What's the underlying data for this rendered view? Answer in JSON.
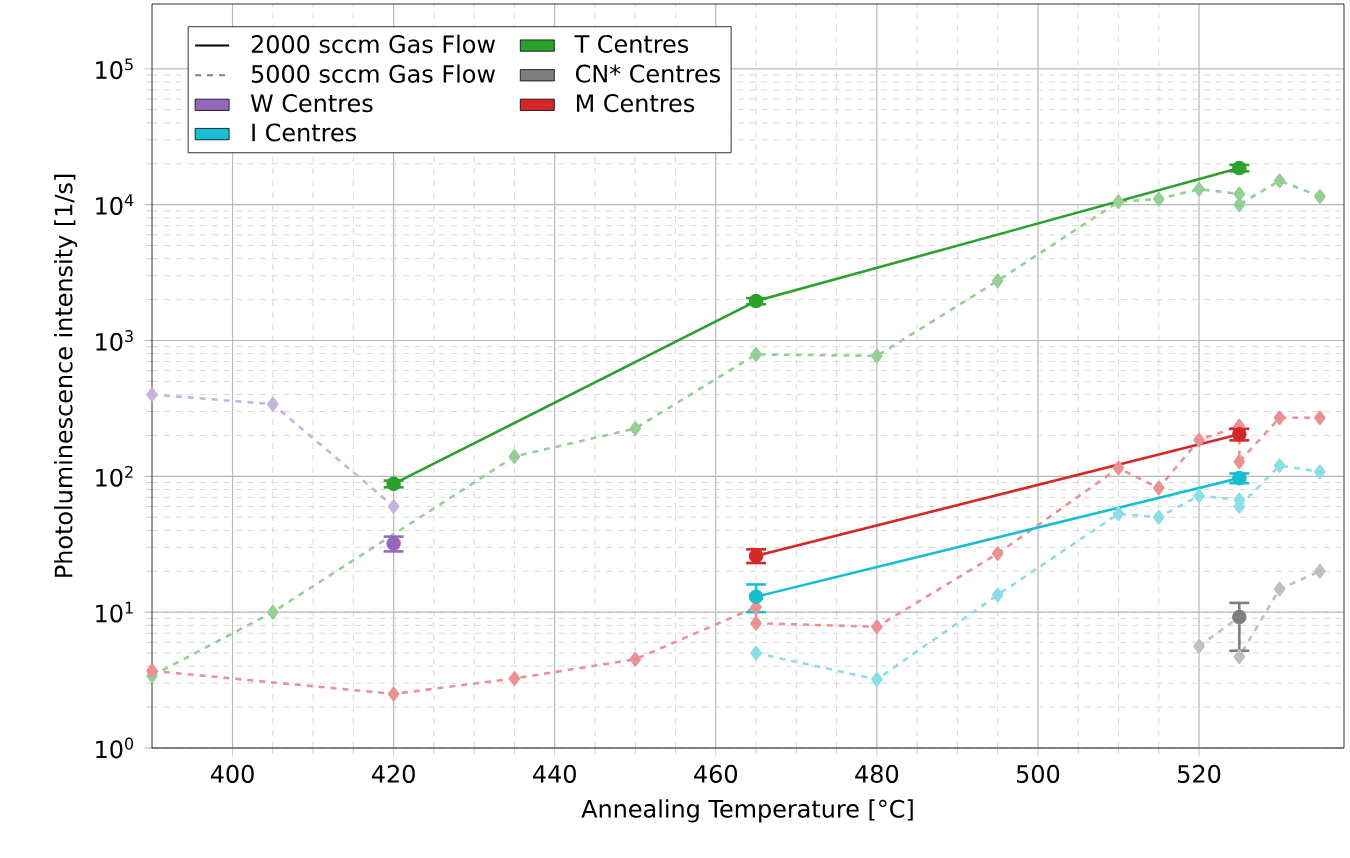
{
  "chart_data": {
    "type": "line",
    "xlabel": "Annealing Temperature [°C]",
    "ylabel": "Photoluminescence intensity [1/s]",
    "log": true,
    "grid": true,
    "legend": "top left",
    "xlim": [
      390,
      538
    ],
    "ylim": [
      1,
      300000
    ],
    "xticks": [
      400,
      420,
      440,
      460,
      480,
      500,
      520
    ],
    "yticks": [
      {
        "value": 1,
        "label": "10$^{0}$"
      },
      {
        "value": 10,
        "label": "10$^{1}$"
      },
      {
        "value": 100,
        "label": "10$^{2}$"
      },
      {
        "value": 1000,
        "label": "10$^{3}$"
      },
      {
        "value": 10000,
        "label": "10$^{4}$"
      },
      {
        "value": 100000,
        "label": "10$^{5}$"
      }
    ],
    "annotations": [
      "2000 sccm Gas Flow",
      "5000 sccm Gas Flow"
    ],
    "series": [
      {
        "color": "#c9b3de",
        "line_style": "dashed",
        "marker": "diamond",
        "x": [
          390,
          405,
          420
        ],
        "values": [
          400,
          340,
          60
        ]
      },
      {
        "color": "#8bdee7",
        "line_style": "dashed",
        "marker": "diamond",
        "x": [
          465,
          480,
          495,
          510,
          515,
          520,
          525,
          525,
          530,
          535
        ],
        "values": [
          5.0,
          3.2,
          13.4,
          53,
          50,
          72,
          67,
          60,
          120,
          108
        ]
      },
      {
        "color": "#95cf95",
        "line_style": "dashed",
        "marker": "diamond",
        "x": [
          390,
          405,
          435,
          450,
          465,
          480,
          495,
          510,
          515,
          520,
          525,
          525,
          530,
          535
        ],
        "values": [
          3.4,
          10,
          140,
          225,
          790,
          770,
          2750,
          10500,
          11000,
          13000,
          12000,
          10000,
          15000,
          11500
        ]
      },
      {
        "color": "#bfbfbf",
        "line_style": "dashed",
        "marker": "diamond",
        "x": [
          520,
          525,
          525,
          530,
          535
        ],
        "values": [
          5.6,
          9.2,
          4.7,
          14.8,
          20
        ]
      },
      {
        "color": "#ea9293",
        "line_style": "dashed",
        "marker": "diamond",
        "x": [
          390,
          420,
          435,
          450,
          465,
          465,
          480,
          495,
          510,
          515,
          520,
          525,
          525,
          530,
          535
        ],
        "values": [
          3.7,
          2.5,
          3.25,
          4.5,
          10.9,
          8.3,
          7.8,
          27,
          115,
          82,
          185,
          235,
          128,
          270,
          270
        ]
      },
      {
        "name": "W Centres",
        "color": "#9467bd",
        "line_style": "solid",
        "marker": "circle",
        "x": [
          420
        ],
        "values": [
          32
        ],
        "errors": [
          4
        ]
      },
      {
        "name": "I Centres",
        "color": "#17becf",
        "line_style": "solid",
        "marker": "circle",
        "x": [
          465,
          525
        ],
        "values": [
          13,
          97
        ],
        "errors": [
          3,
          8
        ]
      },
      {
        "name": "T Centres",
        "color": "#2ca02c",
        "line_style": "solid",
        "marker": "circle",
        "x": [
          420,
          465,
          525
        ],
        "values": [
          88,
          1950,
          18600
        ],
        "errors": [
          5,
          100,
          1000
        ]
      },
      {
        "name": "CN* Centres",
        "color": "#7f7f7f",
        "line_style": "solid",
        "marker": "circle",
        "x": [
          525
        ],
        "values": [
          9.2
        ],
        "errors": [
          [
            5.2,
            11.7
          ]
        ]
      },
      {
        "name": "M Centres",
        "color": "#d62728",
        "line_style": "solid",
        "marker": "circle",
        "x": [
          465,
          525
        ],
        "values": [
          26,
          204
        ],
        "errors": [
          3,
          20
        ]
      }
    ]
  }
}
